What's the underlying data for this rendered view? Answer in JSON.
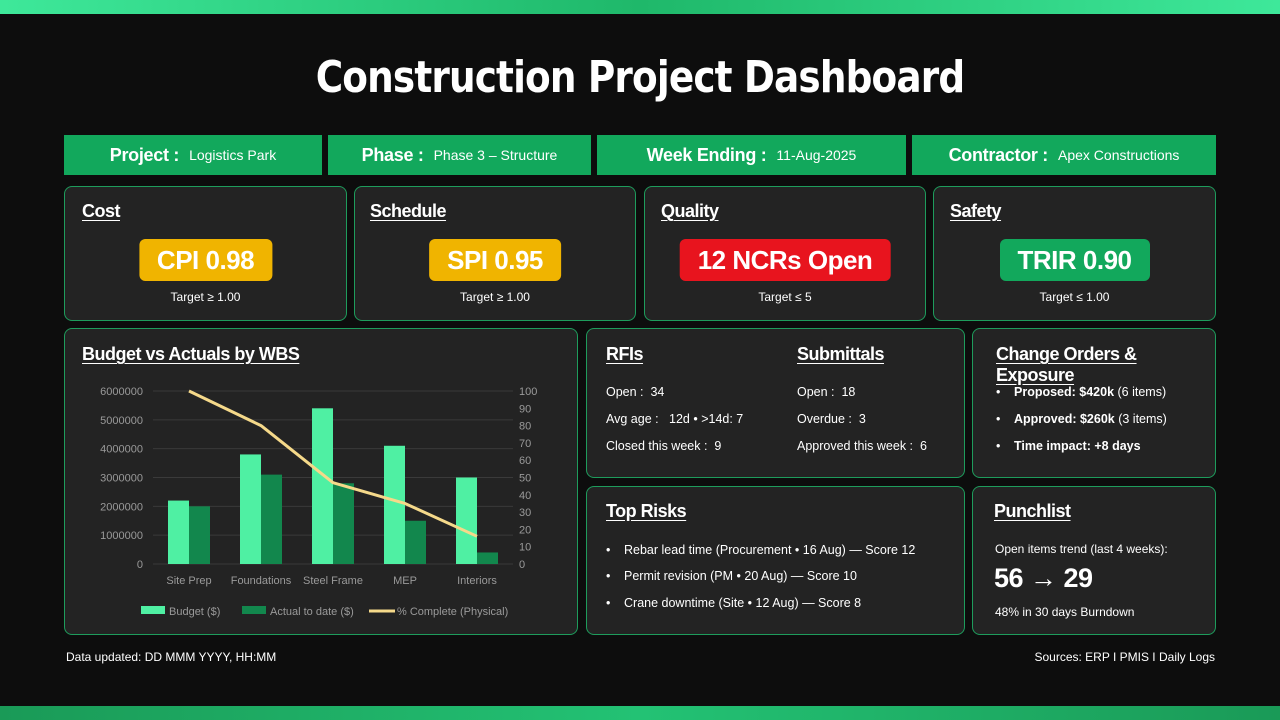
{
  "title": "Construction Project Dashboard",
  "info": [
    {
      "label": "Project :",
      "value": "Logistics Park"
    },
    {
      "label": "Phase :",
      "value": "Phase 3 – Structure"
    },
    {
      "label": "Week Ending :",
      "value": "11-Aug-2025"
    },
    {
      "label": "Contractor :",
      "value": "Apex Constructions"
    }
  ],
  "kpis": [
    {
      "title": "Cost",
      "badge": "CPI 0.98",
      "target": "Target ≥ 1.00",
      "color": "#f0b400"
    },
    {
      "title": "Schedule",
      "badge": "SPI 0.95",
      "target": "Target ≥ 1.00",
      "color": "#f0b400"
    },
    {
      "title": "Quality",
      "badge": "12 NCRs Open",
      "target": "Target ≤ 5",
      "color": "#e8141e"
    },
    {
      "title": "Safety",
      "badge": "TRIR 0.90",
      "target": "Target ≤ 1.00",
      "color": "#12a85c"
    }
  ],
  "budget_panel": {
    "title": "Budget vs Actuals by WBS"
  },
  "chart_data": {
    "type": "bar",
    "categories": [
      "Site Prep",
      "Foundations",
      "Steel Frame",
      "MEP",
      "Interiors"
    ],
    "series": [
      {
        "name": "Budget ($)",
        "type": "bar",
        "values": [
          2200000,
          3800000,
          5400000,
          4100000,
          3000000
        ],
        "color": "#4ff0a3"
      },
      {
        "name": "Actual to date ($)",
        "type": "bar",
        "values": [
          2000000,
          3100000,
          2800000,
          1500000,
          400000
        ],
        "color": "#12874d"
      },
      {
        "name": "% Complete (Physical)",
        "type": "line",
        "axis": "right",
        "values": [
          100,
          80,
          47,
          35,
          16
        ],
        "color": "#f5d98a"
      }
    ],
    "y_left": {
      "min": 0,
      "max": 6000000,
      "ticks": [
        "0",
        "1000000",
        "2000000",
        "3000000",
        "4000000",
        "5000000",
        "6000000"
      ]
    },
    "y_right": {
      "min": 0,
      "max": 100,
      "ticks": [
        "0",
        "10",
        "20",
        "30",
        "40",
        "50",
        "60",
        "70",
        "80",
        "90",
        "100"
      ]
    },
    "grid": true,
    "legend": "bottom"
  },
  "rfis": {
    "title": "RFIs",
    "lines": [
      {
        "label": "Open :",
        "value": "34"
      },
      {
        "label": "Avg age :",
        "value": "12d • >14d: 7"
      },
      {
        "label": "Closed this week :",
        "value": "9"
      }
    ]
  },
  "submittals": {
    "title": "Submittals",
    "lines": [
      {
        "label": "Open :",
        "value": "18"
      },
      {
        "label": "Overdue :",
        "value": "3"
      },
      {
        "label": "Approved this week :",
        "value": "6"
      }
    ]
  },
  "change_orders": {
    "title": "Change Orders & Exposure",
    "items": [
      {
        "bold": "Proposed: $420k",
        "rest": " (6 items)"
      },
      {
        "bold": "Approved: $260k",
        "rest": " (3 items)"
      },
      {
        "bold": "Time impact: +8 days",
        "rest": ""
      }
    ]
  },
  "risks": {
    "title": "Top Risks",
    "items": [
      "Rebar lead time (Procurement • 16 Aug) — Score 12",
      "Permit revision (PM • 20 Aug) — Score 10",
      "Crane downtime (Site • 12 Aug) — Score 8"
    ]
  },
  "punchlist": {
    "title": "Punchlist",
    "trend_label": "Open items trend (last 4 weeks):",
    "trend": "56 → 29",
    "burndown": "48% in 30 days Burndown"
  },
  "footer": {
    "updated": "Data updated: DD MMM YYYY, HH:MM",
    "sources": "Sources: ERP I PMIS I Daily Logs"
  }
}
